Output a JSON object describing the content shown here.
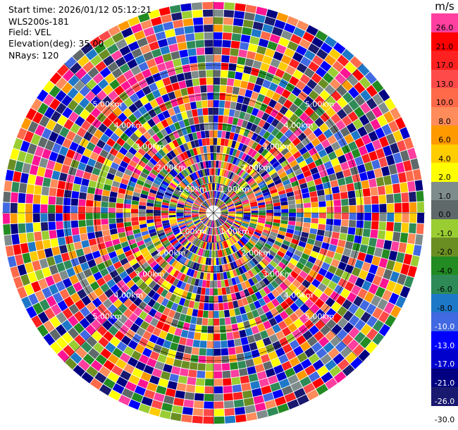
{
  "info": {
    "start_time": "Start time: 2026/01/12 05:12:21",
    "instrument": "WLS200s-181",
    "field": "Field: VEL",
    "elevation": "Elevation(deg): 35.00",
    "nrays": "NRays: 120"
  },
  "colorbar": {
    "unit": "m/s",
    "levels": [
      {
        "label": "26.0",
        "color": "#ff3fa0"
      },
      {
        "label": "21.0",
        "color": "#ff0000"
      },
      {
        "label": "17.0",
        "color": "#ff2020"
      },
      {
        "label": "13.0",
        "color": "#ff4a4a"
      },
      {
        "label": "10.0",
        "color": "#ff6a4a"
      },
      {
        "label": "8.0",
        "color": "#ff8c5a"
      },
      {
        "label": "6.0",
        "color": "#ff9900"
      },
      {
        "label": "4.0",
        "color": "#ffcc00"
      },
      {
        "label": "2.0",
        "color": "#ffff00"
      },
      {
        "label": "1.0",
        "color": "#7f8c8c"
      },
      {
        "label": "0.0",
        "color": "#5f6969"
      },
      {
        "label": "-1.0",
        "color": "#9acd32"
      },
      {
        "label": "-2.0",
        "color": "#6b8e23"
      },
      {
        "label": "-4.0",
        "color": "#228b22"
      },
      {
        "label": "-6.0",
        "color": "#2e8b57"
      },
      {
        "label": "-8.0",
        "color": "#1e78c8"
      },
      {
        "label": "-10.0",
        "color": "#4169e1"
      },
      {
        "label": "-13.0",
        "color": "#0000ff"
      },
      {
        "label": "-17.0",
        "color": "#0000cd"
      },
      {
        "label": "-21.0",
        "color": "#000080"
      },
      {
        "label": "-26.0",
        "color": "#191970"
      },
      {
        "label": "-30.0",
        "color": "#191970"
      }
    ]
  },
  "range_rings": [
    {
      "label": "1.00km"
    },
    {
      "label": "2.00km"
    },
    {
      "label": "3.00km"
    },
    {
      "label": "4.00km"
    },
    {
      "label": "5.00km"
    }
  ],
  "palette": [
    "#ff1493",
    "#ff3fa0",
    "#ff0000",
    "#ff2020",
    "#ff4a4a",
    "#ff6a4a",
    "#ff8c5a",
    "#ff9900",
    "#ffcc00",
    "#ffff00",
    "#7f8c8c",
    "#5f6969",
    "#9acd32",
    "#6b8e23",
    "#228b22",
    "#2e8b57",
    "#1e78c8",
    "#4169e1",
    "#0000ff",
    "#0000cd",
    "#000080",
    "#191970"
  ]
}
